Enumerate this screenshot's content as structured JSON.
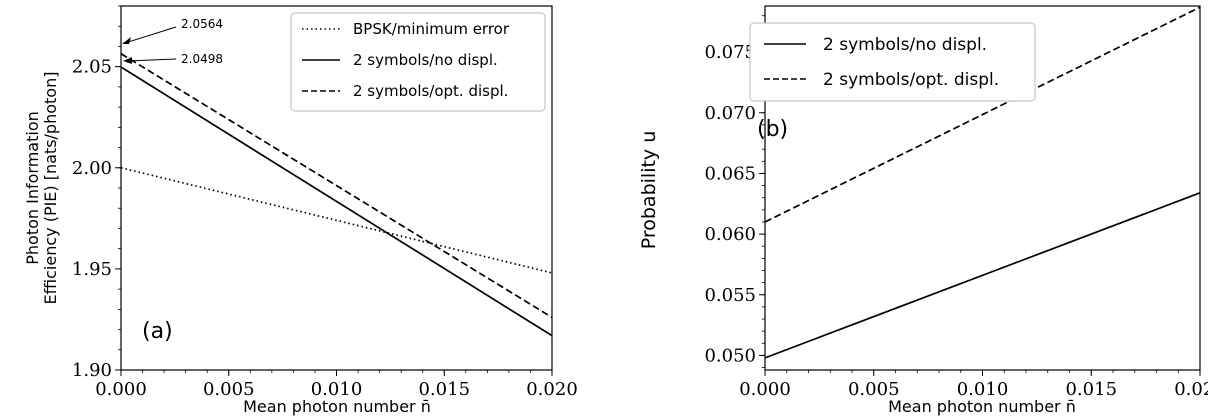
{
  "chart_data": [
    {
      "type": "line",
      "panel_label": "(a)",
      "xlabel": "Mean photon number n̄",
      "ylabel_lines": [
        "Photon Information",
        "Efficiency (PIE) [nats/photon]"
      ],
      "xlim": [
        0.0,
        0.02
      ],
      "ylim": [
        1.9,
        2.08
      ],
      "x_ticks": [
        "0.000",
        "0.005",
        "0.010",
        "0.015",
        "0.020"
      ],
      "y_ticks": [
        "1.90",
        "1.95",
        "2.00",
        "2.05"
      ],
      "legend_position": "top-right",
      "series": [
        {
          "name": "BPSK/minimum error",
          "style": "dotted",
          "x": [
            0.0,
            0.02
          ],
          "y": [
            2.0,
            1.948
          ]
        },
        {
          "name": "2 symbols/no displ.",
          "style": "solid",
          "x": [
            0.0,
            0.02
          ],
          "y": [
            2.0498,
            1.917
          ]
        },
        {
          "name": "2 symbols/opt. displ.",
          "style": "dashed",
          "x": [
            0.0,
            0.02
          ],
          "y": [
            2.0564,
            1.926
          ]
        }
      ],
      "annotations": [
        {
          "text": "2.0564",
          "x": 0.0,
          "y": 2.0564
        },
        {
          "text": "2.0498",
          "x": 0.0,
          "y": 2.0498
        }
      ]
    },
    {
      "type": "line",
      "panel_label": "(b)",
      "xlabel": "Mean photon number n̄",
      "ylabel": "Probability u",
      "xlim": [
        0.0,
        0.02
      ],
      "ylim": [
        0.0488,
        0.0788
      ],
      "x_ticks": [
        "0.000",
        "0.005",
        "0.010",
        "0.015",
        "0.020"
      ],
      "y_ticks": [
        "0.050",
        "0.055",
        "0.060",
        "0.065",
        "0.070",
        "0.075"
      ],
      "legend_position": "top-left",
      "series": [
        {
          "name": "2 symbols/no displ.",
          "style": "solid",
          "x": [
            0.0,
            0.02
          ],
          "y": [
            0.0498,
            0.0634
          ]
        },
        {
          "name": "2 symbols/opt. displ.",
          "style": "dashed",
          "x": [
            0.0,
            0.02
          ],
          "y": [
            0.061,
            0.0787
          ]
        }
      ]
    }
  ]
}
